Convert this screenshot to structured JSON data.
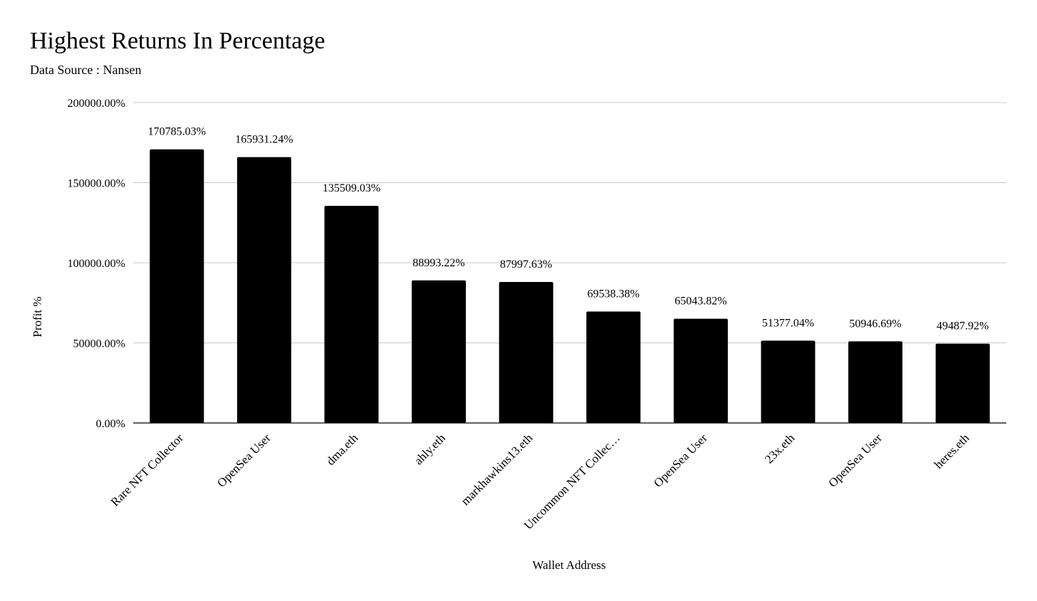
{
  "chart_data": {
    "type": "bar",
    "title": "Highest Returns In Percentage",
    "subtitle": "Data Source : Nansen",
    "xlabel": "Wallet Address",
    "ylabel": "Profit %",
    "ylim": [
      0,
      200000
    ],
    "yticks": [
      0,
      50000,
      100000,
      150000,
      200000
    ],
    "ytick_labels": [
      "0.00%",
      "50000.00%",
      "100000.00%",
      "150000.00%",
      "200000.00%"
    ],
    "grid": true,
    "legend": "none",
    "categories": [
      "Rare NFT Collector",
      "OpenSea User",
      "dma.eth",
      "ahly.eth",
      "markhawkins13.eth",
      "Uncommon NFT Collec…",
      "OpenSea User",
      "23x.eth",
      "OpenSea User",
      "heres.eth"
    ],
    "values": [
      170785.03,
      165931.24,
      135509.03,
      88993.22,
      87997.63,
      69538.38,
      65043.82,
      51377.04,
      50946.69,
      49487.92
    ],
    "data_labels": [
      "170785.03%",
      "165931.24%",
      "135509.03%",
      "88993.22%",
      "87997.63%",
      "69538.38%",
      "65043.82%",
      "51377.04%",
      "50946.69%",
      "49487.92%"
    ],
    "colors": {
      "bar": "#000000",
      "grid": "#c8c8c8",
      "axis": "#000000",
      "text": "#000000"
    }
  }
}
